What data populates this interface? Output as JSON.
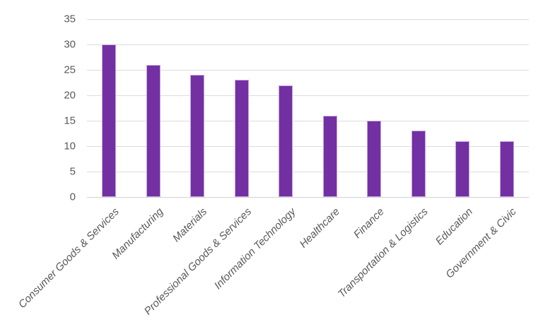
{
  "chart_data": {
    "type": "bar",
    "title": "",
    "xlabel": "",
    "ylabel": "",
    "categories": [
      "Consumer Goods & Services",
      "Manufacturing",
      "Materials",
      "Professional Goods & Services",
      "Information Technology",
      "Healthcare",
      "Finance",
      "Transportation & Logistics",
      "Education",
      "Government & Civic"
    ],
    "values": [
      30,
      26,
      24,
      23,
      22,
      16,
      15,
      13,
      11,
      11
    ],
    "ylim": [
      0,
      35
    ],
    "yticks": [
      0,
      5,
      10,
      15,
      20,
      25,
      30,
      35
    ],
    "grid": true,
    "legend": false,
    "colors": {
      "bar_fill": "#7230A3",
      "bar_border": "#C4A6E0",
      "gridline": "#DCDCDC",
      "axis_line": "#D2D2D2",
      "tick_label": "#595959",
      "category_label": "#595959",
      "background": "#FFFFFF"
    }
  }
}
